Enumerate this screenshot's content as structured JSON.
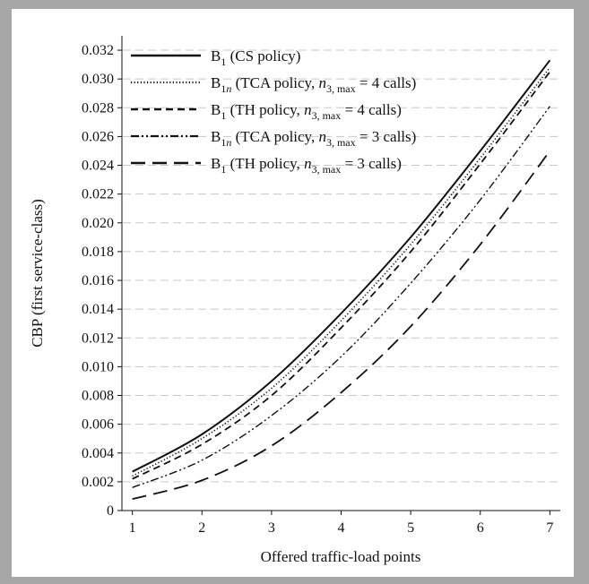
{
  "chart_data": {
    "type": "line",
    "title": "",
    "xlabel": "Offered traffic-load points",
    "ylabel": "CBP (first service-class)",
    "x": [
      1,
      2,
      3,
      4,
      5,
      6,
      7
    ],
    "xlim": [
      0.85,
      7.15
    ],
    "ylim": [
      0,
      0.033
    ],
    "xticks": [
      "1",
      "2",
      "3",
      "4",
      "5",
      "6",
      "7"
    ],
    "yticks": [
      "0",
      "0.002",
      "0.004",
      "0.006",
      "0.008",
      "0.010",
      "0.012",
      "0.014",
      "0.016",
      "0.018",
      "0.020",
      "0.022",
      "0.024",
      "0.026",
      "0.028",
      "0.030",
      "0.032"
    ],
    "grid": "horizontal dashed",
    "legend_position": "top-left",
    "series": [
      {
        "name": "B1 (CS policy)",
        "legend": {
          "base": "B",
          "sub": "1",
          "text": " (CS policy)"
        },
        "style": "solid",
        "values": [
          0.0027,
          0.0053,
          0.009,
          0.0137,
          0.019,
          0.025,
          0.0313
        ]
      },
      {
        "name": "B1n (TCA policy, n3, max = 4 calls)",
        "legend": {
          "base": "B",
          "sub": "1n",
          "text": " (TCA policy, ",
          "var": "n",
          "varsub": "3, max",
          "tail": " = 4 calls)"
        },
        "style": "dotted",
        "values": [
          0.0024,
          0.005,
          0.0085,
          0.0132,
          0.0185,
          0.0245,
          0.0308
        ]
      },
      {
        "name": "B1 (TH policy, n3, max = 4 calls)",
        "legend": {
          "base": "B",
          "sub": "1",
          "text": " (TH policy, ",
          "var": "n",
          "varsub": "3, max",
          "tail": " = 4 calls)"
        },
        "style": "dashed",
        "values": [
          0.0022,
          0.0046,
          0.008,
          0.0127,
          0.018,
          0.0241,
          0.0305
        ]
      },
      {
        "name": "B1n (TCA policy, n3, max = 3 calls)",
        "legend": {
          "base": "B",
          "sub": "1n",
          "text": " (TCA policy, ",
          "var": "n",
          "varsub": "3, max",
          "tail": " = 3 calls)"
        },
        "style": "dashdotdot",
        "values": [
          0.0016,
          0.0035,
          0.0066,
          0.0107,
          0.0158,
          0.0216,
          0.0281
        ]
      },
      {
        "name": "B1 (TH policy, n3, max = 3 calls)",
        "legend": {
          "base": "B",
          "sub": "1",
          "text": " (TH policy, ",
          "var": "n",
          "varsub": "3, max",
          "tail": " = 3 calls)"
        },
        "style": "longdash",
        "values": [
          0.0008,
          0.0021,
          0.0045,
          0.0082,
          0.0128,
          0.0185,
          0.025
        ]
      }
    ]
  }
}
